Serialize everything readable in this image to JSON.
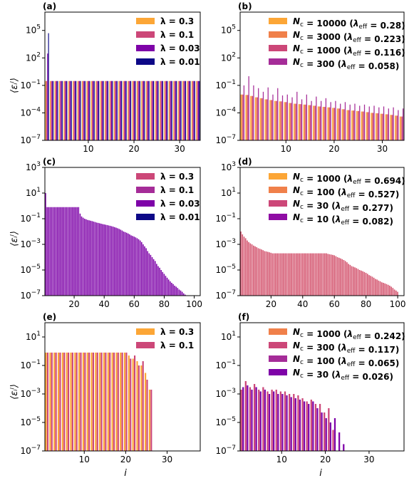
{
  "figure": {
    "x_axis_label": "i",
    "y_axis_label": "⟨εᵢˡ⟩"
  },
  "chart_data": [
    {
      "type": "bar",
      "panel": "(a)",
      "xlim": [
        0.5,
        34.5
      ],
      "ylim_log10": [
        -7,
        7
      ],
      "y_log": true,
      "xticks": [
        10,
        20,
        30
      ],
      "yticks": [
        "10^5",
        "10^2",
        "10^-1",
        "10^-4",
        "10^-7"
      ],
      "legend": [
        {
          "label": "λ = 0.3",
          "color": "#fca636"
        },
        {
          "label": "λ = 0.1",
          "color": "#cc4778"
        },
        {
          "label": "λ = 0.03",
          "color": "#7e03a8"
        },
        {
          "label": "λ = 0.01",
          "color": "#0d0887"
        }
      ],
      "series": [
        {
          "name": "λ = 0.3",
          "color": "#fca636",
          "x_start": 1,
          "values": [
            0.3,
            0.3,
            0.3,
            0.3,
            0.3,
            0.3,
            0.3,
            0.3,
            0.3,
            0.3,
            0.3,
            0.3,
            0.3,
            0.3,
            0.3,
            0.3,
            0.3,
            0.3,
            0.3,
            0.3,
            0.3,
            0.3,
            0.3,
            0.3,
            0.3,
            0.3,
            0.3,
            0.3,
            0.3,
            0.3,
            0.3,
            0.3,
            0.3,
            0.3
          ]
        },
        {
          "name": "λ = 0.1",
          "color": "#cc4778",
          "x_start": 1,
          "values": [
            0.3,
            0.3,
            0.3,
            0.3,
            0.3,
            0.3,
            0.3,
            0.3,
            0.3,
            0.3,
            0.3,
            0.3,
            0.3,
            0.3,
            0.3,
            0.3,
            0.3,
            0.3,
            0.3,
            0.3,
            0.3,
            0.3,
            0.3,
            0.3,
            0.3,
            0.3,
            0.3,
            0.3,
            0.3,
            0.3,
            0.3,
            0.3,
            0.3,
            0.3
          ]
        },
        {
          "name": "λ = 0.03",
          "color": "#7e03a8",
          "x_start": 1,
          "values": [
            300,
            0.3,
            0.3,
            0.3,
            0.3,
            0.3,
            0.3,
            0.3,
            0.3,
            0.3,
            0.3,
            0.3,
            0.3,
            0.3,
            0.3,
            0.3,
            0.3,
            0.3,
            0.3,
            0.3,
            0.3,
            0.3,
            0.3,
            0.3,
            0.3,
            0.3,
            0.3,
            0.3,
            0.3,
            0.3,
            0.3,
            0.3,
            0.3,
            0.3
          ]
        },
        {
          "name": "λ = 0.01",
          "color": "#0d0887",
          "x_start": 1,
          "values": [
            50000,
            0.3,
            0.3,
            0.3,
            0.3,
            0.3,
            0.3,
            0.3,
            0.3,
            0.3,
            0.3,
            0.3,
            0.3,
            0.3,
            0.3,
            0.3,
            0.3,
            0.3,
            0.3,
            0.3,
            0.3,
            0.3,
            0.3,
            0.3,
            0.3,
            0.3,
            0.3,
            0.3,
            0.3,
            0.3,
            0.3,
            0.3,
            0.3,
            0.3
          ]
        }
      ]
    },
    {
      "type": "bar",
      "panel": "(b)",
      "xlim": [
        0.5,
        34.5
      ],
      "ylim_log10": [
        -7,
        7
      ],
      "y_log": true,
      "xticks": [
        10,
        20,
        30
      ],
      "yticks": [
        "10^5",
        "10^2",
        "10^-1",
        "10^-4",
        "10^-7"
      ],
      "legend": [
        {
          "label": "Nc = 10000 (λeff = 0.28)",
          "color": "#fca636"
        },
        {
          "label": "Nc = 3000 (λeff = 0.223)",
          "color": "#f0804a"
        },
        {
          "label": "Nc = 1000 (λeff = 0.116)",
          "color": "#cc4778"
        },
        {
          "label": "Nc = 300 (λeff = 0.058)",
          "color": "#a52c98"
        }
      ],
      "series": [
        {
          "name": "Nc = 10000 (λeff = 0.28)",
          "color": "#fca636",
          "x_start": 1,
          "values": [
            0.01,
            0.009,
            0.007,
            0.005,
            0.004,
            0.003,
            0.0025,
            0.002,
            0.0018,
            0.0015,
            0.0012,
            0.001,
            0.0009,
            0.0008,
            0.0007,
            0.0006,
            0.0005,
            0.00045,
            0.0004,
            0.00035,
            0.0003,
            0.00025,
            0.0002,
            0.00018,
            0.00016,
            0.00014,
            0.00012,
            0.0001,
            9e-05,
            8e-05,
            7e-05,
            6e-05,
            5e-05,
            4e-05
          ]
        },
        {
          "name": "Nc = 3000 (λeff = 0.223)",
          "color": "#f0804a",
          "x_start": 1,
          "values": [
            0.01,
            0.009,
            0.007,
            0.005,
            0.004,
            0.003,
            0.0025,
            0.002,
            0.0018,
            0.0015,
            0.0012,
            0.001,
            0.0009,
            0.0008,
            0.0007,
            0.0006,
            0.0005,
            0.00045,
            0.0004,
            0.00035,
            0.0003,
            0.00025,
            0.0002,
            0.00018,
            0.00016,
            0.00014,
            0.00012,
            0.0001,
            9e-05,
            8e-05,
            7e-05,
            6e-05,
            5e-05,
            4e-05
          ]
        },
        {
          "name": "Nc = 1000 (λeff = 0.116)",
          "color": "#cc4778",
          "x_start": 1,
          "values": [
            0.01,
            0.009,
            0.007,
            0.005,
            0.004,
            0.003,
            0.0025,
            0.002,
            0.0018,
            0.0015,
            0.0012,
            0.001,
            0.0009,
            0.0008,
            0.0007,
            0.0006,
            0.0005,
            0.00045,
            0.0004,
            0.00035,
            0.0003,
            0.00025,
            0.0002,
            0.00018,
            0.00016,
            0.00014,
            0.00012,
            0.0001,
            9e-05,
            8e-05,
            7e-05,
            6e-05,
            5e-05,
            4e-05
          ]
        },
        {
          "name": "Nc = 300 (λeff = 0.058)",
          "color": "#a52c98",
          "x_start": 1,
          "values": [
            0.1,
            1,
            0.1,
            0.05,
            0.02,
            0.06,
            0.01,
            0.05,
            0.008,
            0.01,
            0.005,
            0.02,
            0.003,
            0.01,
            0.002,
            0.006,
            0.002,
            0.004,
            0.0015,
            0.002,
            0.001,
            0.0015,
            0.0008,
            0.001,
            0.0006,
            0.0008,
            0.0005,
            0.0006,
            0.0004,
            0.0005,
            0.0003,
            0.0004,
            0.0002,
            0.0003
          ]
        }
      ]
    },
    {
      "type": "bar",
      "panel": "(c)",
      "xlim": [
        0.5,
        104
      ],
      "ylim_log10": [
        -7,
        3
      ],
      "y_log": true,
      "xticks": [
        20,
        40,
        60,
        80,
        100
      ],
      "yticks": [
        "10^3",
        "10^1",
        "10^-1",
        "10^-3",
        "10^-5",
        "10^-7"
      ],
      "legend": [
        {
          "label": "λ = 0.3",
          "color": "#cc4778"
        },
        {
          "label": "λ = 0.1",
          "color": "#a52c98"
        },
        {
          "label": "λ = 0.03",
          "color": "#7e03a8"
        },
        {
          "label": "λ = 0.01",
          "color": "#0d0887"
        }
      ],
      "series": [
        {
          "name": "λ = 0.1",
          "color": "#7e03a8",
          "x_start": 1,
          "values": [
            10,
            0.8,
            0.8,
            0.8,
            0.8,
            0.8,
            0.8,
            0.8,
            0.8,
            0.8,
            0.8,
            0.8,
            0.8,
            0.8,
            0.8,
            0.8,
            0.8,
            0.8,
            0.8,
            0.8,
            0.8,
            0.8,
            0.8,
            0.25,
            0.15,
            0.12,
            0.1,
            0.09,
            0.08,
            0.075,
            0.07,
            0.065,
            0.06,
            0.055,
            0.05,
            0.047,
            0.044,
            0.041,
            0.038,
            0.036,
            0.034,
            0.032,
            0.03,
            0.028,
            0.026,
            0.024,
            0.022,
            0.02,
            0.018,
            0.016,
            0.014,
            0.012,
            0.01,
            0.009,
            0.008,
            0.007,
            0.006,
            0.005,
            0.0045,
            0.004,
            0.0035,
            0.003,
            0.0025,
            0.002,
            0.0015,
            0.001,
            0.0007,
            0.0005,
            0.0003,
            0.0002,
            0.00015,
            0.0001,
            7e-05,
            5e-05,
            3e-05,
            2e-05,
            1.5e-05,
            1e-05,
            7e-06,
            5e-06,
            3.5e-06,
            2.5e-06,
            1.8e-06,
            1.3e-06,
            1e-06,
            8e-07,
            6e-07,
            5e-07,
            4e-07,
            3e-07,
            2.5e-07,
            2e-07,
            1.5e-07,
            1.2e-07
          ]
        }
      ]
    },
    {
      "type": "bar",
      "panel": "(d)",
      "xlim": [
        0.5,
        104
      ],
      "ylim_log10": [
        -7,
        3
      ],
      "y_log": true,
      "xticks": [
        20,
        40,
        60,
        80,
        100
      ],
      "yticks": [
        "10^3",
        "10^1",
        "10^-1",
        "10^-3",
        "10^-5",
        "10^-7"
      ],
      "legend": [
        {
          "label": "Nc = 1000 (λeff = 0.694)",
          "color": "#fca636"
        },
        {
          "label": "Nc = 100 (λeff = 0.527)",
          "color": "#f0804a"
        },
        {
          "label": "Nc = 30 (λeff = 0.277)",
          "color": "#cc4778"
        },
        {
          "label": "Nc = 10 (λeff = 0.082)",
          "color": "#8f0da4"
        }
      ],
      "series": [
        {
          "name": "Nc = 30 (λeff = 0.277)",
          "color": "#d45670",
          "x_start": 1,
          "values": [
            0.01,
            0.006,
            0.004,
            0.003,
            0.002,
            0.0015,
            0.0012,
            0.001,
            0.0008,
            0.0007,
            0.0006,
            0.0005,
            0.00045,
            0.0004,
            0.00035,
            0.0003,
            0.00028,
            0.00026,
            0.00024,
            0.00022,
            0.0002,
            0.0002,
            0.0002,
            0.0002,
            0.0002,
            0.0002,
            0.0002,
            0.0002,
            0.0002,
            0.0002,
            0.0002,
            0.0002,
            0.0002,
            0.0002,
            0.0002,
            0.0002,
            0.0002,
            0.0002,
            0.0002,
            0.0002,
            0.0002,
            0.0002,
            0.0002,
            0.0002,
            0.0002,
            0.0002,
            0.0002,
            0.0002,
            0.0002,
            0.0002,
            0.0002,
            0.0002,
            0.0002,
            0.0002,
            0.0002,
            0.00018,
            0.00017,
            0.00016,
            0.00015,
            0.00014,
            0.00012,
            0.0001,
            9e-05,
            8e-05,
            7e-05,
            6e-05,
            5e-05,
            4e-05,
            3e-05,
            2.5e-05,
            2e-05,
            1.8e-05,
            1.6e-05,
            1.4e-05,
            1.2e-05,
            1e-05,
            9e-06,
            8e-06,
            7e-06,
            6e-06,
            5e-06,
            4e-06,
            3.5e-06,
            3e-06,
            2.5e-06,
            2e-06,
            1.8e-06,
            1.5e-06,
            1.3e-06,
            1.1e-06,
            1e-06,
            9e-07,
            8e-07,
            7e-07,
            6e-07,
            5e-07,
            4e-07,
            3e-07,
            2.5e-07,
            2e-07
          ]
        }
      ]
    },
    {
      "type": "bar",
      "panel": "(e)",
      "xlim": [
        0.5,
        38
      ],
      "ylim_log10": [
        -7,
        2
      ],
      "y_log": true,
      "xticks": [
        10,
        20,
        30
      ],
      "yticks": [
        "10^1",
        "10^-1",
        "10^-3",
        "10^-5",
        "10^-7"
      ],
      "legend": [
        {
          "label": "λ = 0.3",
          "color": "#fca636"
        },
        {
          "label": "λ = 0.1",
          "color": "#cc4778"
        }
      ],
      "series": [
        {
          "name": "λ = 0.3",
          "color": "#fca636",
          "x_start": 1,
          "values": [
            0.8,
            0.8,
            0.8,
            0.8,
            0.8,
            0.8,
            0.8,
            0.8,
            0.8,
            0.8,
            0.8,
            0.8,
            0.8,
            0.8,
            0.8,
            0.8,
            0.8,
            0.8,
            0.8,
            0.8,
            0.5,
            0.3,
            0.2,
            0.1,
            0.03,
            0.002
          ]
        },
        {
          "name": "λ = 0.1",
          "color": "#cc4778",
          "x_start": 1,
          "values": [
            0.8,
            0.8,
            0.8,
            0.8,
            0.8,
            0.8,
            0.8,
            0.8,
            0.8,
            0.8,
            0.8,
            0.8,
            0.8,
            0.8,
            0.8,
            0.8,
            0.8,
            0.8,
            0.8,
            0.8,
            0.3,
            0.5,
            0.1,
            0.2,
            0.01,
            0.002
          ]
        }
      ]
    },
    {
      "type": "bar",
      "panel": "(f)",
      "xlim": [
        0.5,
        38
      ],
      "ylim_log10": [
        -7,
        2
      ],
      "y_log": true,
      "xticks": [
        10,
        20,
        30
      ],
      "yticks": [
        "10^1",
        "10^-1",
        "10^-3",
        "10^-5",
        "10^-7"
      ],
      "legend": [
        {
          "label": "Nc = 1000 (λeff = 0.242)",
          "color": "#f0804a"
        },
        {
          "label": "Nc = 300 (λeff = 0.117)",
          "color": "#cc4778"
        },
        {
          "label": "Nc = 100 (λeff = 0.065)",
          "color": "#a52c98"
        },
        {
          "label": "Nc = 30 (λeff = 0.026)",
          "color": "#7e03a8"
        }
      ],
      "series": [
        {
          "name": "Nc = 300 (λeff = 0.117)",
          "color": "#cc4778",
          "x_start": 1,
          "values": [
            0.002,
            0.008,
            0.003,
            0.005,
            0.002,
            0.003,
            0.0015,
            0.002,
            0.002,
            0.0015,
            0.0015,
            0.001,
            0.001,
            0.0008,
            0.0005,
            0.0003,
            0.0004,
            0.0002,
            0.0002,
            5e-05,
            0.0001,
            3e-06
          ]
        },
        {
          "name": "Nc = 30 (λeff = 0.026)",
          "color": "#7e03a8",
          "x_start": 1,
          "values": [
            0.003,
            0.004,
            0.002,
            0.003,
            0.0015,
            0.002,
            0.001,
            0.0015,
            0.001,
            0.001,
            0.0008,
            0.0006,
            0.0005,
            0.0004,
            0.0003,
            0.0002,
            0.0003,
            0.0001,
            5e-05,
            2e-05,
            1e-05,
            2e-05,
            2e-06,
            3e-07
          ]
        }
      ]
    }
  ]
}
